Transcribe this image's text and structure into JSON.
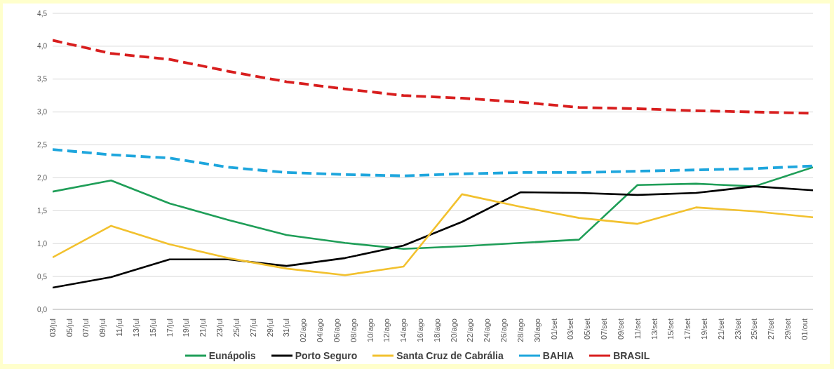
{
  "chart_data": {
    "type": "line",
    "x": [
      "--07-03",
      "--07-10",
      "--07-17",
      "--07-24",
      "--07-31",
      "--08-07",
      "--08-14",
      "--08-21",
      "--08-28",
      "--09-04",
      "--09-11",
      "--09-18",
      "--09-25",
      "--10-02"
    ],
    "xlim": [
      "--07-03",
      "--10-02"
    ],
    "xticks": [
      {
        "value": "--07-03",
        "label": "03/jul"
      },
      {
        "value": "--07-05",
        "label": "05/jul"
      },
      {
        "value": "--07-07",
        "label": "07/jul"
      },
      {
        "value": "--07-09",
        "label": "09/jul"
      },
      {
        "value": "--07-11",
        "label": "11/jul"
      },
      {
        "value": "--07-13",
        "label": "13/jul"
      },
      {
        "value": "--07-15",
        "label": "15/jul"
      },
      {
        "value": "--07-17",
        "label": "17/jul"
      },
      {
        "value": "--07-19",
        "label": "19/jul"
      },
      {
        "value": "--07-21",
        "label": "21/jul"
      },
      {
        "value": "--07-23",
        "label": "23/jul"
      },
      {
        "value": "--07-25",
        "label": "25/jul"
      },
      {
        "value": "--07-27",
        "label": "27/jul"
      },
      {
        "value": "--07-29",
        "label": "29/jul"
      },
      {
        "value": "--07-31",
        "label": "31/jul"
      },
      {
        "value": "--08-02",
        "label": "02/ago"
      },
      {
        "value": "--08-04",
        "label": "04/ago"
      },
      {
        "value": "--08-06",
        "label": "06/ago"
      },
      {
        "value": "--08-08",
        "label": "08/ago"
      },
      {
        "value": "--08-10",
        "label": "10/ago"
      },
      {
        "value": "--08-12",
        "label": "12/ago"
      },
      {
        "value": "--08-14",
        "label": "14/ago"
      },
      {
        "value": "--08-16",
        "label": "16/ago"
      },
      {
        "value": "--08-18",
        "label": "18/ago"
      },
      {
        "value": "--08-20",
        "label": "20/ago"
      },
      {
        "value": "--08-22",
        "label": "22/ago"
      },
      {
        "value": "--08-24",
        "label": "24/ago"
      },
      {
        "value": "--08-26",
        "label": "26/ago"
      },
      {
        "value": "--08-28",
        "label": "28/ago"
      },
      {
        "value": "--08-30",
        "label": "30/ago"
      },
      {
        "value": "--09-01",
        "label": "01/set"
      },
      {
        "value": "--09-03",
        "label": "03/set"
      },
      {
        "value": "--09-05",
        "label": "05/set"
      },
      {
        "value": "--09-07",
        "label": "07/set"
      },
      {
        "value": "--09-09",
        "label": "09/set"
      },
      {
        "value": "--09-11",
        "label": "11/set"
      },
      {
        "value": "--09-13",
        "label": "13/set"
      },
      {
        "value": "--09-15",
        "label": "15/set"
      },
      {
        "value": "--09-17",
        "label": "17/set"
      },
      {
        "value": "--09-19",
        "label": "19/set"
      },
      {
        "value": "--09-21",
        "label": "21/set"
      },
      {
        "value": "--09-23",
        "label": "23/set"
      },
      {
        "value": "--09-25",
        "label": "25/set"
      },
      {
        "value": "--09-27",
        "label": "27/set"
      },
      {
        "value": "--09-29",
        "label": "29/set"
      },
      {
        "value": "--10-01",
        "label": "01/out"
      }
    ],
    "ylim": [
      0,
      4.5
    ],
    "yticks": [
      {
        "value": 0,
        "label": "0,0"
      },
      {
        "value": 0.5,
        "label": "0,5"
      },
      {
        "value": 1,
        "label": "1,0"
      },
      {
        "value": 1.5,
        "label": "1,5"
      },
      {
        "value": 2,
        "label": "2,0"
      },
      {
        "value": 2.5,
        "label": "2,5"
      },
      {
        "value": 3,
        "label": "3,0"
      },
      {
        "value": 3.5,
        "label": "3,5"
      },
      {
        "value": 4,
        "label": "4,0"
      },
      {
        "value": 4.5,
        "label": "4,5"
      }
    ],
    "grid": "y",
    "legend": "bottom",
    "marker": "none",
    "series": [
      {
        "name": "Eunápolis",
        "color": "#1f9e58",
        "line_style": "solid",
        "values": [
          1.79,
          1.96,
          1.61,
          1.36,
          1.13,
          1.01,
          0.92,
          0.96,
          1.01,
          1.06,
          1.89,
          1.91,
          1.87,
          2.16
        ]
      },
      {
        "name": "Porto Seguro",
        "color": "#000000",
        "line_style": "solid",
        "values": [
          0.33,
          0.49,
          0.76,
          0.76,
          0.66,
          0.78,
          0.97,
          1.33,
          1.78,
          1.77,
          1.74,
          1.77,
          1.87,
          1.81
        ]
      },
      {
        "name": "Santa Cruz de Cabrália",
        "color": "#f2c12e",
        "line_style": "solid",
        "values": [
          0.79,
          1.27,
          0.99,
          0.78,
          0.62,
          0.52,
          0.65,
          1.75,
          1.56,
          1.39,
          1.3,
          1.55,
          1.49,
          1.4
        ]
      },
      {
        "name": "BAHIA",
        "color": "#1ea6dd",
        "line_style": "dashed",
        "values": [
          2.43,
          2.35,
          2.3,
          2.16,
          2.08,
          2.05,
          2.03,
          2.06,
          2.08,
          2.08,
          2.1,
          2.12,
          2.14,
          2.18
        ]
      },
      {
        "name": "BRASIL",
        "color": "#d81e1e",
        "line_style": "dashed",
        "values": [
          4.09,
          3.89,
          3.8,
          3.62,
          3.46,
          3.35,
          3.25,
          3.21,
          3.15,
          3.07,
          3.05,
          3.02,
          3.0,
          2.98
        ]
      }
    ]
  }
}
